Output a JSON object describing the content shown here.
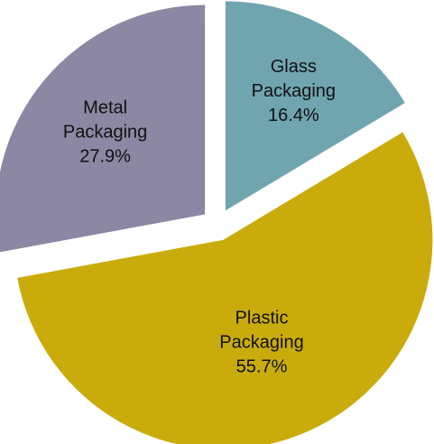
{
  "chart_data": {
    "type": "pie",
    "exploded": true,
    "start_angle_deg": 0,
    "direction": "clockwise",
    "slices": [
      {
        "name": "Glass Packaging",
        "label_lines": [
          "Glass",
          "Packaging",
          "16.4%"
        ],
        "value": 16.4,
        "color": "#70a5b0"
      },
      {
        "name": "Plastic Packaging",
        "label_lines": [
          "Plastic",
          "Packaging",
          "55.7%"
        ],
        "value": 55.7,
        "color": "#c9ac0c"
      },
      {
        "name": "Metal Packaging",
        "label_lines": [
          "Metal",
          "Packaging",
          "27.9%"
        ],
        "value": 27.9,
        "color": "#8c87a3"
      }
    ]
  }
}
